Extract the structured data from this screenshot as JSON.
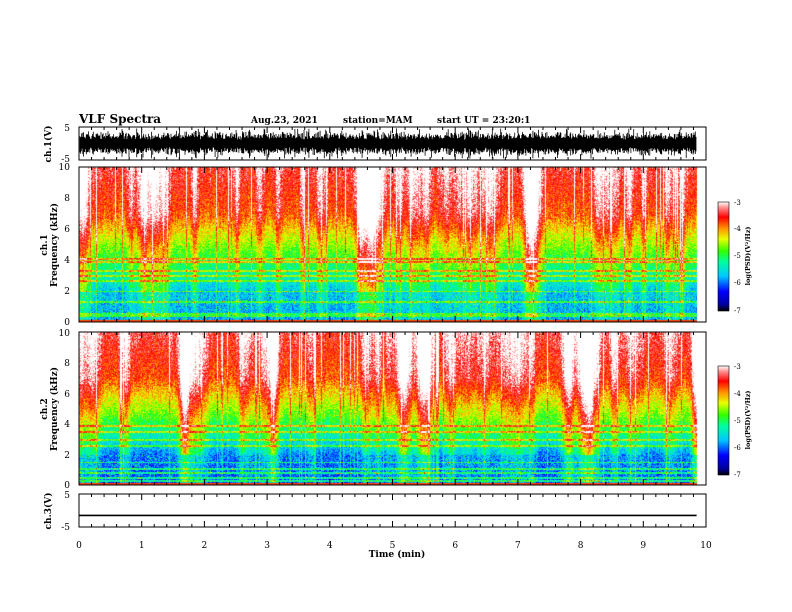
{
  "header": {
    "title": "VLF Spectra",
    "date": "Aug.23, 2021",
    "station": "station=MAM",
    "start_ut": "start UT = 23:20:1"
  },
  "chart_data": [
    {
      "type": "line",
      "name": "ch1-waveform",
      "ylabel": "ch.1(V)",
      "ylim": [
        -5,
        5
      ],
      "yticks": [
        "5",
        "-5"
      ],
      "xlim": [
        0,
        10
      ],
      "description_values": {
        "signal_range_V": [
          -3,
          3
        ]
      },
      "color": "#000000"
    },
    {
      "type": "heatmap",
      "name": "ch1-spectrogram",
      "ylabel": "ch.1 Frequency (kHz)",
      "ylabel_line1": "ch.1",
      "ylabel_line2": "Frequency (kHz)",
      "ylim": [
        0,
        10
      ],
      "yticks": [
        "0",
        "2",
        "4",
        "6",
        "8",
        "10"
      ],
      "xlim": [
        0,
        10
      ],
      "data_end_min": 9.85,
      "colorbar": {
        "label": "log(PSD)(V²/Hz)",
        "range": [
          -7,
          -3
        ],
        "ticks": [
          "-3",
          "-4",
          "-5",
          "-6",
          "-7"
        ]
      }
    },
    {
      "type": "heatmap",
      "name": "ch2-spectrogram",
      "ylabel": "ch.2 Frequency (kHz)",
      "ylabel_line1": "ch.2",
      "ylabel_line2": "Frequency (kHz)",
      "ylim": [
        0,
        10
      ],
      "yticks": [
        "0",
        "2",
        "4",
        "6",
        "8",
        "10"
      ],
      "xlim": [
        0,
        10
      ],
      "data_end_min": 9.85,
      "colorbar": {
        "label": "log(PSD)(V²/Hz)",
        "range": [
          -7,
          -3
        ],
        "ticks": [
          "-3",
          "-4",
          "-5",
          "-6",
          "-7"
        ]
      }
    },
    {
      "type": "line",
      "name": "ch3-waveform",
      "ylabel": "ch.3(V)",
      "ylim": [
        -5,
        5
      ],
      "yticks": [
        "5",
        "-5"
      ],
      "xlim": [
        0,
        10
      ],
      "values": [
        -1.5,
        -1.5
      ],
      "x": [
        0,
        9.85
      ],
      "color": "#000000"
    }
  ],
  "xaxis": {
    "label": "Time (min)",
    "ticks": [
      "0",
      "1",
      "2",
      "3",
      "4",
      "5",
      "6",
      "7",
      "8",
      "9",
      "10"
    ]
  }
}
